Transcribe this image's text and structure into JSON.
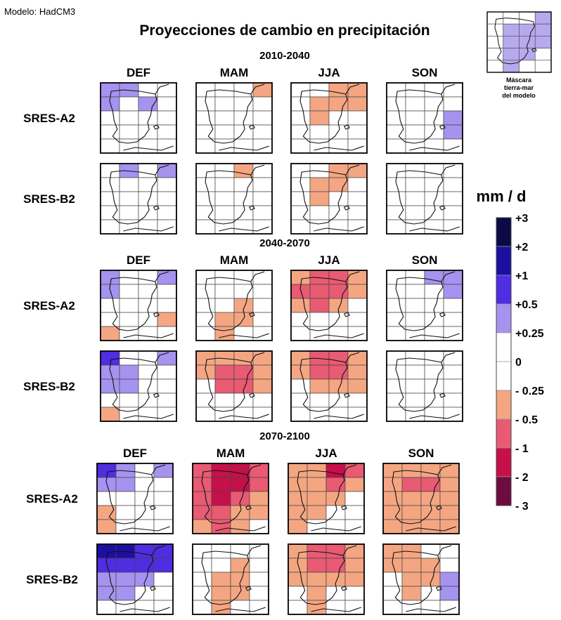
{
  "model_label": "Modelo: HadCM3",
  "chart_data": {
    "type": "heatmap",
    "title": "Proyecciones de cambio en precipitación",
    "seasons": [
      "DEF",
      "MAM",
      "JJA",
      "SON"
    ],
    "scenarios": [
      "SRES-A2",
      "SRES-B2"
    ],
    "grid": {
      "rows": 5,
      "cols": 4
    },
    "colorbar": {
      "unit": "mm / d",
      "ticks": [
        "+3",
        "+2",
        "+1",
        "+0.5",
        "+0.25",
        "0",
        "- 0.25",
        "- 0.5",
        "- 1",
        "- 2",
        "- 3"
      ],
      "classes": [
        "#0b0a47",
        "#1c0fa0",
        "#4f2de0",
        "#a593ef",
        "#ffffff",
        "#ffffff",
        "#f4a682",
        "#e85b72",
        "#c5104a",
        "#6e0b3f"
      ],
      "class_codes": [
        "P4",
        "P3",
        "P2",
        "P1",
        "Z+",
        "Z-",
        "N1",
        "N2",
        "N3",
        "N4"
      ]
    },
    "mask_label": [
      "Máscara",
      "tierra-mar",
      "del modelo"
    ],
    "mask": [
      "W..P1",
      "P1P1P1P1",
      "WP1P1P1",
      "WP1P1W",
      "WP1WW"
    ],
    "periods": [
      {
        "label": "2010-2040",
        "maps": [
          [
            [
              "P1",
              "P1",
              "Z",
              "Z",
              "P1",
              "Z",
              "P1",
              "Z",
              "Z",
              "Z",
              "Z",
              "Z",
              "Z",
              "Z",
              "Z",
              "Z",
              "Z",
              "Z",
              "Z",
              "Z"
            ],
            [
              "Z",
              "Z",
              "Z",
              "N1",
              "Z",
              "Z",
              "Z",
              "Z",
              "Z",
              "Z",
              "Z",
              "Z",
              "Z",
              "Z",
              "Z",
              "Z",
              "Z",
              "Z",
              "Z",
              "Z"
            ],
            [
              "Z",
              "Z",
              "N1",
              "N1",
              "Z",
              "N1",
              "N1",
              "N1",
              "Z",
              "N1",
              "Z",
              "Z",
              "Z",
              "Z",
              "Z",
              "Z",
              "Z",
              "Z",
              "Z",
              "Z"
            ],
            [
              "Z",
              "Z",
              "Z",
              "Z",
              "Z",
              "Z",
              "Z",
              "Z",
              "Z",
              "Z",
              "Z",
              "P1",
              "Z",
              "Z",
              "Z",
              "P1",
              "Z",
              "Z",
              "Z",
              "Z"
            ]
          ],
          [
            [
              "Z",
              "P1",
              "Z",
              "P1",
              "Z",
              "Z",
              "Z",
              "Z",
              "Z",
              "Z",
              "Z",
              "Z",
              "Z",
              "Z",
              "Z",
              "Z",
              "Z",
              "Z",
              "Z",
              "Z"
            ],
            [
              "Z",
              "Z",
              "N1",
              "Z",
              "Z",
              "Z",
              "Z",
              "Z",
              "Z",
              "Z",
              "Z",
              "Z",
              "Z",
              "Z",
              "Z",
              "Z",
              "Z",
              "Z",
              "Z",
              "Z"
            ],
            [
              "Z",
              "Z",
              "N1",
              "N1",
              "Z",
              "N1",
              "N1",
              "Z",
              "Z",
              "N1",
              "Z",
              "Z",
              "Z",
              "Z",
              "Z",
              "Z",
              "Z",
              "Z",
              "Z",
              "Z"
            ],
            [
              "Z",
              "Z",
              "Z",
              "Z",
              "Z",
              "Z",
              "Z",
              "Z",
              "Z",
              "Z",
              "Z",
              "Z",
              "Z",
              "Z",
              "Z",
              "Z",
              "Z",
              "Z",
              "Z",
              "Z"
            ]
          ]
        ]
      },
      {
        "label": "2040-2070",
        "maps": [
          [
            [
              "P1",
              "Z",
              "Z",
              "P1",
              "P1",
              "Z",
              "Z",
              "Z",
              "Z",
              "Z",
              "Z",
              "Z",
              "Z",
              "Z",
              "Z",
              "N1",
              "N1",
              "Z",
              "Z",
              "Z"
            ],
            [
              "Z",
              "Z",
              "Z",
              "Z",
              "Z",
              "Z",
              "Z",
              "Z",
              "Z",
              "Z",
              "N1",
              "Z",
              "Z",
              "N1",
              "N1",
              "Z",
              "Z",
              "N1",
              "Z",
              "Z"
            ],
            [
              "N1",
              "N2",
              "N2",
              "N1",
              "N2",
              "N2",
              "N2",
              "N1",
              "N1",
              "N2",
              "N1",
              "Z",
              "Z",
              "Z",
              "Z",
              "Z",
              "Z",
              "Z",
              "Z",
              "Z"
            ],
            [
              "Z",
              "Z",
              "P1",
              "P1",
              "Z",
              "Z",
              "Z",
              "P1",
              "Z",
              "Z",
              "Z",
              "Z",
              "Z",
              "Z",
              "Z",
              "Z",
              "Z",
              "Z",
              "Z",
              "Z"
            ]
          ],
          [
            [
              "P2",
              "Z",
              "Z",
              "P1",
              "P1",
              "P1",
              "Z",
              "Z",
              "P1",
              "P1",
              "Z",
              "Z",
              "Z",
              "Z",
              "Z",
              "Z",
              "N1",
              "Z",
              "Z",
              "Z"
            ],
            [
              "N1",
              "N1",
              "N1",
              "N1",
              "N1",
              "N2",
              "N2",
              "N1",
              "Z",
              "N2",
              "N2",
              "N1",
              "Z",
              "Z",
              "Z",
              "Z",
              "Z",
              "Z",
              "Z",
              "Z"
            ],
            [
              "N1",
              "N2",
              "N2",
              "N1",
              "N1",
              "N2",
              "N2",
              "N1",
              "Z",
              "N1",
              "N1",
              "N1",
              "Z",
              "Z",
              "Z",
              "Z",
              "Z",
              "Z",
              "Z",
              "Z"
            ],
            [
              "Z",
              "Z",
              "Z",
              "Z",
              "Z",
              "Z",
              "Z",
              "Z",
              "Z",
              "Z",
              "Z",
              "Z",
              "Z",
              "Z",
              "Z",
              "Z",
              "Z",
              "Z",
              "Z",
              "Z"
            ]
          ]
        ]
      },
      {
        "label": "2070-2100",
        "maps": [
          [
            [
              "P2",
              "P1",
              "Z",
              "P1",
              "P1",
              "P1",
              "Z",
              "Z",
              "Z",
              "Z",
              "Z",
              "Z",
              "N1",
              "Z",
              "Z",
              "Z",
              "N1",
              "Z",
              "Z",
              "Z"
            ],
            [
              "N2",
              "N3",
              "N3",
              "N2",
              "N2",
              "N3",
              "N3",
              "N2",
              "N2",
              "N3",
              "N2",
              "N1",
              "N2",
              "N2",
              "N1",
              "N1",
              "N1",
              "N2",
              "N1",
              "Z"
            ],
            [
              "N1",
              "N1",
              "N3",
              "N2",
              "N1",
              "N1",
              "N2",
              "N1",
              "N1",
              "N1",
              "N1",
              "Z",
              "N1",
              "N1",
              "Z",
              "Z",
              "N1",
              "Z",
              "Z",
              "Z"
            ],
            [
              "N1",
              "N1",
              "N1",
              "N1",
              "N1",
              "N2",
              "N2",
              "N1",
              "N1",
              "N1",
              "N1",
              "N1",
              "N1",
              "N1",
              "N1",
              "N1",
              "N1",
              "N1",
              "N1",
              "N1"
            ]
          ],
          [
            [
              "P3",
              "P3",
              "P2",
              "P2",
              "P2",
              "P2",
              "P2",
              "P2",
              "P1",
              "P1",
              "P1",
              "Z",
              "P1",
              "P1",
              "Z",
              "Z",
              "Z",
              "Z",
              "Z",
              "Z"
            ],
            [
              "Z",
              "Z",
              "Z",
              "Z",
              "Z",
              "Z",
              "N1",
              "Z",
              "Z",
              "N1",
              "N1",
              "Z",
              "Z",
              "N1",
              "N1",
              "Z",
              "Z",
              "N1",
              "Z",
              "Z"
            ],
            [
              "N1",
              "N2",
              "N2",
              "N1",
              "N1",
              "N2",
              "N2",
              "N1",
              "N1",
              "N1",
              "N1",
              "N1",
              "Z",
              "N1",
              "Z",
              "Z",
              "Z",
              "N1",
              "Z",
              "Z"
            ],
            [
              "N1",
              "N1",
              "Z",
              "Z",
              "N1",
              "N1",
              "N1",
              "Z",
              "Z",
              "N1",
              "N1",
              "P1",
              "Z",
              "N1",
              "Z",
              "P1",
              "Z",
              "Z",
              "Z",
              "Z"
            ]
          ]
        ]
      }
    ]
  }
}
